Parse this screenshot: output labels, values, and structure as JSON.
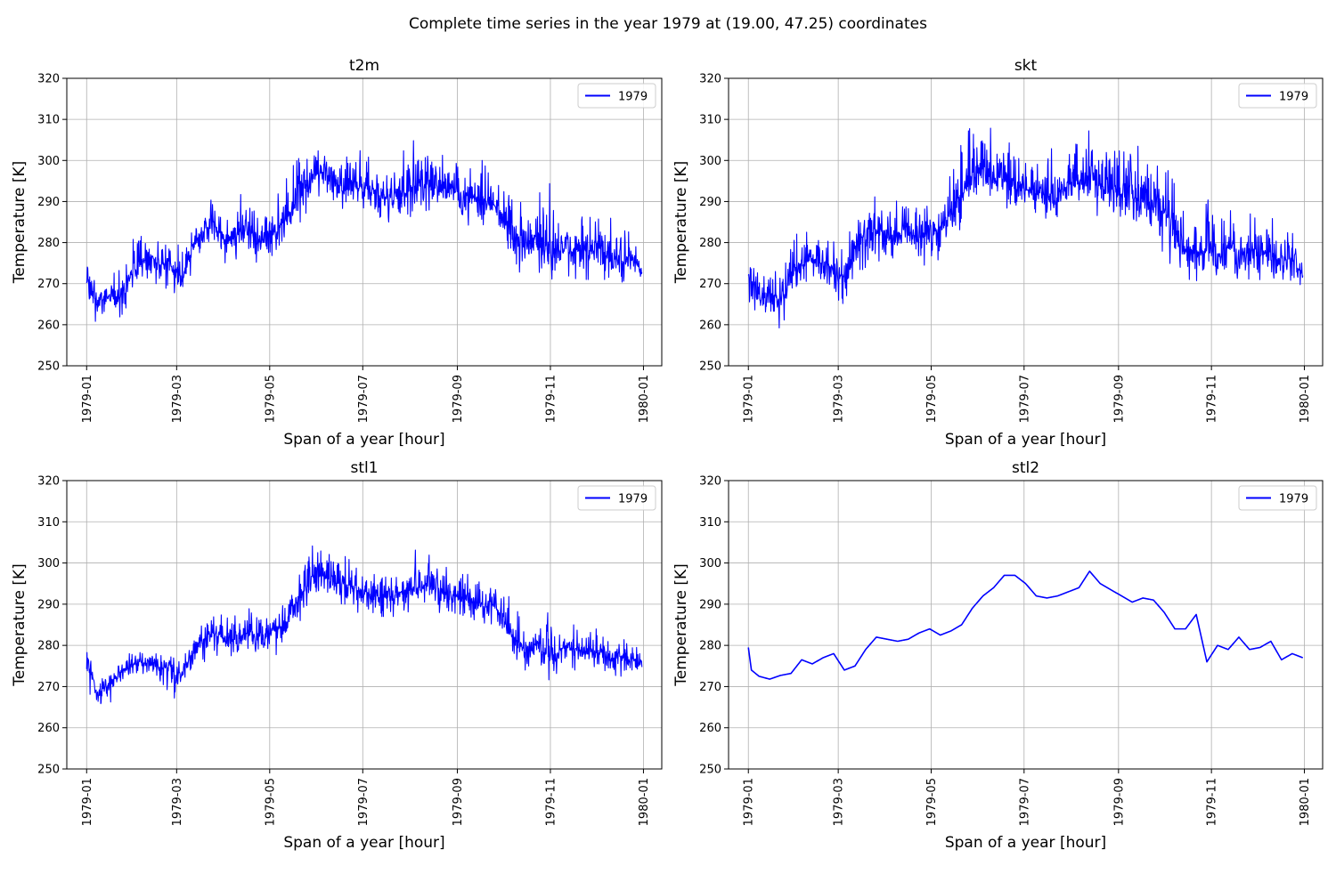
{
  "suptitle": "Complete time series in the year 1979 at (19.00, 47.25) coordinates",
  "line_color": "#0000ff",
  "grid_color": "#b0b0b0",
  "chart_data": [
    {
      "type": "line",
      "title": "t2m",
      "xlabel": "Span of a year [hour]",
      "ylabel": "Temperature [K]",
      "ylim": [
        250,
        320
      ],
      "yticks": [
        250,
        260,
        270,
        280,
        290,
        300,
        310,
        320
      ],
      "xlim": [
        "1978-12-19",
        "1980-01-13"
      ],
      "xticks": [
        "1979-01",
        "1979-03",
        "1979-05",
        "1979-07",
        "1979-09",
        "1979-11",
        "1980-01"
      ],
      "grid": true,
      "legend": "top-right",
      "series": [
        {
          "name": "1979",
          "x": [
            "1979-01-01",
            "1979-01-08",
            "1979-01-15",
            "1979-01-22",
            "1979-01-29",
            "1979-02-05",
            "1979-02-12",
            "1979-02-19",
            "1979-02-26",
            "1979-03-05",
            "1979-03-12",
            "1979-03-19",
            "1979-03-26",
            "1979-04-02",
            "1979-04-09",
            "1979-04-16",
            "1979-04-23",
            "1979-04-30",
            "1979-05-07",
            "1979-05-14",
            "1979-05-21",
            "1979-05-28",
            "1979-06-04",
            "1979-06-11",
            "1979-06-18",
            "1979-06-25",
            "1979-07-02",
            "1979-07-09",
            "1979-07-16",
            "1979-07-23",
            "1979-07-30",
            "1979-08-06",
            "1979-08-13",
            "1979-08-20",
            "1979-08-27",
            "1979-09-03",
            "1979-09-10",
            "1979-09-17",
            "1979-09-24",
            "1979-10-01",
            "1979-10-08",
            "1979-10-15",
            "1979-10-22",
            "1979-10-29",
            "1979-11-05",
            "1979-11-12",
            "1979-11-19",
            "1979-11-26",
            "1979-12-03",
            "1979-12-10",
            "1979-12-17",
            "1979-12-24",
            "1979-12-31"
          ],
          "mean": [
            272,
            265,
            267,
            266,
            272,
            275,
            277,
            275,
            274,
            271,
            280,
            283,
            284,
            281,
            282,
            283,
            280,
            282,
            283,
            287,
            292,
            296,
            297,
            295,
            294,
            294,
            293,
            292,
            291,
            292,
            293,
            294,
            295,
            294,
            293,
            292,
            291,
            290,
            290,
            287,
            281,
            279,
            280,
            278,
            277,
            279,
            278,
            278,
            279,
            276,
            276,
            276,
            273
          ],
          "min": [
            260,
            261,
            263,
            260,
            266,
            270,
            272,
            268,
            268,
            267,
            274,
            276,
            277,
            275,
            276,
            277,
            275,
            275,
            277,
            281,
            285,
            289,
            290,
            288,
            287,
            286,
            286,
            285,
            285,
            285,
            286,
            287,
            288,
            287,
            286,
            285,
            284,
            283,
            283,
            278,
            270,
            272,
            273,
            268,
            270,
            272,
            271,
            271,
            273,
            269,
            269,
            270,
            271
          ],
          "max": [
            280,
            270,
            272,
            273,
            279,
            284,
            281,
            281,
            280,
            279,
            286,
            291,
            290,
            289,
            290,
            294,
            288,
            290,
            292,
            297,
            302,
            305,
            305,
            303,
            301,
            303,
            302,
            299,
            300,
            301,
            303,
            306,
            304,
            303,
            300,
            301,
            300,
            300,
            300,
            297,
            293,
            288,
            287,
            299,
            286,
            287,
            288,
            286,
            287,
            286,
            285,
            282,
            275
          ]
        }
      ]
    },
    {
      "type": "line",
      "title": "skt",
      "xlabel": "Span of a year [hour]",
      "ylabel": "Temperature [K]",
      "ylim": [
        250,
        320
      ],
      "yticks": [
        250,
        260,
        270,
        280,
        290,
        300,
        310,
        320
      ],
      "xlim": [
        "1978-12-19",
        "1980-01-13"
      ],
      "xticks": [
        "1979-01",
        "1979-03",
        "1979-05",
        "1979-07",
        "1979-09",
        "1979-11",
        "1980-01"
      ],
      "grid": true,
      "legend": "top-right",
      "series": [
        {
          "name": "1979",
          "x": [
            "1979-01-01",
            "1979-01-08",
            "1979-01-15",
            "1979-01-22",
            "1979-01-29",
            "1979-02-05",
            "1979-02-12",
            "1979-02-19",
            "1979-02-26",
            "1979-03-05",
            "1979-03-12",
            "1979-03-19",
            "1979-03-26",
            "1979-04-02",
            "1979-04-09",
            "1979-04-16",
            "1979-04-23",
            "1979-04-30",
            "1979-05-07",
            "1979-05-14",
            "1979-05-21",
            "1979-05-28",
            "1979-06-04",
            "1979-06-11",
            "1979-06-18",
            "1979-06-25",
            "1979-07-02",
            "1979-07-09",
            "1979-07-16",
            "1979-07-23",
            "1979-07-30",
            "1979-08-06",
            "1979-08-13",
            "1979-08-20",
            "1979-08-27",
            "1979-09-03",
            "1979-09-10",
            "1979-09-17",
            "1979-09-24",
            "1979-10-01",
            "1979-10-08",
            "1979-10-15",
            "1979-10-22",
            "1979-10-29",
            "1979-11-05",
            "1979-11-12",
            "1979-11-19",
            "1979-11-26",
            "1979-12-03",
            "1979-12-10",
            "1979-12-17",
            "1979-12-24",
            "1979-12-31"
          ],
          "mean": [
            272,
            266,
            268,
            266,
            272,
            275,
            276,
            275,
            274,
            271,
            279,
            282,
            283,
            281,
            282,
            283,
            281,
            283,
            284,
            288,
            292,
            296,
            298,
            296,
            295,
            294,
            293,
            292,
            291,
            292,
            294,
            295,
            296,
            294,
            293,
            292,
            291,
            290,
            290,
            287,
            281,
            278,
            279,
            278,
            277,
            279,
            278,
            278,
            279,
            276,
            276,
            276,
            272
          ],
          "min": [
            263,
            262,
            261,
            259,
            265,
            268,
            270,
            268,
            266,
            265,
            272,
            274,
            276,
            274,
            275,
            276,
            274,
            275,
            276,
            279,
            284,
            287,
            289,
            287,
            286,
            285,
            285,
            284,
            284,
            284,
            286,
            287,
            288,
            286,
            285,
            284,
            283,
            282,
            282,
            277,
            270,
            270,
            270,
            269,
            270,
            271,
            270,
            270,
            271,
            268,
            268,
            269,
            270
          ],
          "max": [
            282,
            272,
            274,
            275,
            281,
            283,
            282,
            282,
            281,
            281,
            288,
            292,
            291,
            290,
            292,
            295,
            290,
            292,
            295,
            299,
            304,
            309,
            310,
            307,
            305,
            306,
            304,
            302,
            302,
            304,
            306,
            310,
            307,
            306,
            305,
            305,
            304,
            303,
            302,
            300,
            294,
            289,
            288,
            298,
            287,
            288,
            287,
            287,
            287,
            286,
            285,
            283,
            275
          ]
        }
      ]
    },
    {
      "type": "line",
      "title": "stl1",
      "xlabel": "Span of a year [hour]",
      "ylabel": "Temperature [K]",
      "ylim": [
        250,
        320
      ],
      "yticks": [
        250,
        260,
        270,
        280,
        290,
        300,
        310,
        320
      ],
      "xlim": [
        "1978-12-19",
        "1980-01-13"
      ],
      "xticks": [
        "1979-01",
        "1979-03",
        "1979-05",
        "1979-07",
        "1979-09",
        "1979-11",
        "1980-01"
      ],
      "grid": true,
      "legend": "top-right",
      "series": [
        {
          "name": "1979",
          "x": [
            "1979-01-01",
            "1979-01-08",
            "1979-01-15",
            "1979-01-22",
            "1979-01-29",
            "1979-02-05",
            "1979-02-12",
            "1979-02-19",
            "1979-02-26",
            "1979-03-05",
            "1979-03-12",
            "1979-03-19",
            "1979-03-26",
            "1979-04-02",
            "1979-04-09",
            "1979-04-16",
            "1979-04-23",
            "1979-04-30",
            "1979-05-07",
            "1979-05-14",
            "1979-05-21",
            "1979-05-28",
            "1979-06-04",
            "1979-06-11",
            "1979-06-18",
            "1979-06-25",
            "1979-07-02",
            "1979-07-09",
            "1979-07-16",
            "1979-07-23",
            "1979-07-30",
            "1979-08-06",
            "1979-08-13",
            "1979-08-20",
            "1979-08-27",
            "1979-09-03",
            "1979-09-10",
            "1979-09-17",
            "1979-09-24",
            "1979-10-01",
            "1979-10-08",
            "1979-10-15",
            "1979-10-22",
            "1979-10-29",
            "1979-11-05",
            "1979-11-12",
            "1979-11-19",
            "1979-11-26",
            "1979-12-03",
            "1979-12-10",
            "1979-12-17",
            "1979-12-24",
            "1979-12-31"
          ],
          "mean": [
            278,
            268,
            270,
            273,
            275,
            276,
            276,
            275,
            274,
            273,
            279,
            282,
            283,
            281,
            282,
            283,
            282,
            283,
            284,
            287,
            292,
            296,
            297,
            296,
            295,
            294,
            293,
            292,
            292,
            292,
            293,
            294,
            295,
            293,
            292,
            292,
            291,
            290,
            290,
            287,
            282,
            279,
            280,
            278,
            278,
            280,
            279,
            278,
            279,
            277,
            277,
            277,
            276
          ],
          "min": [
            270,
            263,
            265,
            270,
            272,
            272,
            272,
            270,
            267,
            268,
            274,
            276,
            277,
            276,
            276,
            277,
            276,
            277,
            278,
            281,
            286,
            290,
            291,
            290,
            289,
            288,
            288,
            287,
            287,
            287,
            288,
            289,
            290,
            288,
            287,
            286,
            285,
            284,
            284,
            280,
            276,
            274,
            274,
            268,
            273,
            274,
            274,
            273,
            274,
            272,
            271,
            272,
            274
          ],
          "max": [
            280,
            271,
            273,
            276,
            278,
            280,
            279,
            279,
            280,
            278,
            285,
            288,
            288,
            287,
            288,
            290,
            288,
            289,
            290,
            294,
            300,
            304,
            305,
            303,
            302,
            300,
            300,
            298,
            298,
            299,
            300,
            304,
            302,
            301,
            298,
            299,
            298,
            297,
            297,
            294,
            290,
            285,
            285,
            295,
            284,
            285,
            285,
            284,
            284,
            283,
            282,
            281,
            278
          ]
        }
      ]
    },
    {
      "type": "line",
      "title": "stl2",
      "xlabel": "Span of a year [hour]",
      "ylabel": "Temperature [K]",
      "ylim": [
        250,
        320
      ],
      "yticks": [
        250,
        260,
        270,
        280,
        290,
        300,
        310,
        320
      ],
      "xlim": [
        "1978-12-19",
        "1980-01-13"
      ],
      "xticks": [
        "1979-01",
        "1979-03",
        "1979-05",
        "1979-07",
        "1979-09",
        "1979-11",
        "1980-01"
      ],
      "grid": true,
      "legend": "top-right",
      "series": [
        {
          "name": "1979",
          "x": [
            "1979-01-01",
            "1979-01-03",
            "1979-01-08",
            "1979-01-15",
            "1979-01-22",
            "1979-01-29",
            "1979-02-05",
            "1979-02-12",
            "1979-02-19",
            "1979-02-26",
            "1979-03-05",
            "1979-03-12",
            "1979-03-19",
            "1979-03-26",
            "1979-04-02",
            "1979-04-09",
            "1979-04-16",
            "1979-04-23",
            "1979-04-30",
            "1979-05-07",
            "1979-05-14",
            "1979-05-21",
            "1979-05-28",
            "1979-06-04",
            "1979-06-11",
            "1979-06-18",
            "1979-06-25",
            "1979-07-02",
            "1979-07-09",
            "1979-07-16",
            "1979-07-23",
            "1979-07-30",
            "1979-08-06",
            "1979-08-13",
            "1979-08-20",
            "1979-08-27",
            "1979-09-03",
            "1979-09-10",
            "1979-09-17",
            "1979-09-24",
            "1979-10-01",
            "1979-10-08",
            "1979-10-15",
            "1979-10-22",
            "1979-10-29",
            "1979-11-05",
            "1979-11-12",
            "1979-11-19",
            "1979-11-26",
            "1979-12-03",
            "1979-12-10",
            "1979-12-17",
            "1979-12-24",
            "1979-12-31"
          ],
          "mean": [
            279.5,
            274,
            272.5,
            271.8,
            272.7,
            273.2,
            276.5,
            275.5,
            277,
            278,
            274,
            275,
            279,
            282,
            281.5,
            281,
            281.5,
            283,
            284,
            282.5,
            283.5,
            285,
            289,
            292,
            294,
            297,
            297,
            295,
            292,
            291.5,
            292,
            293,
            294,
            298,
            295,
            293.5,
            292,
            290.5,
            291.5,
            291,
            288,
            284,
            284,
            287.5,
            276,
            280,
            279,
            282,
            279,
            279.5,
            281,
            276.5,
            278,
            277
          ]
        }
      ]
    }
  ]
}
